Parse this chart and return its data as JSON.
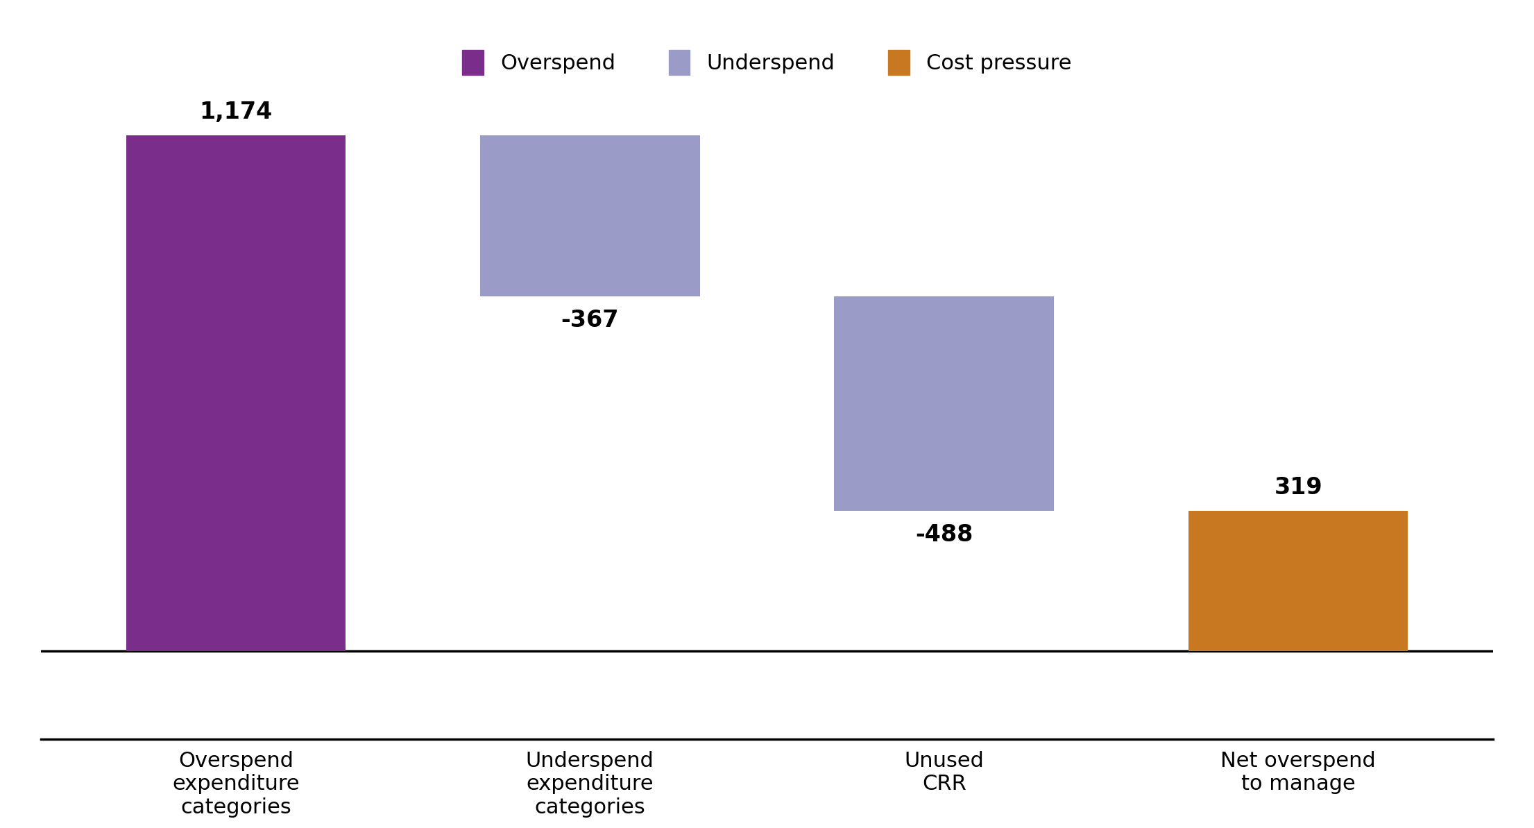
{
  "x_labels": [
    "Overspend\nexpenditure\ncategories",
    "Underspend\nexpenditure\ncategories",
    "Unused\nCRR",
    "Net overspend\nto manage"
  ],
  "values": [
    1174,
    -367,
    -488,
    319
  ],
  "bar_colors": [
    "#7b2d8b",
    "#9b9bc8",
    "#9b9bc8",
    "#c87820"
  ],
  "data_labels": [
    "1,174",
    "-367",
    "-488",
    "319"
  ],
  "legend_items": [
    {
      "label": "Overspend",
      "color": "#7b2d8b"
    },
    {
      "label": "Underspend",
      "color": "#9b9bc8"
    },
    {
      "label": "Cost pressure",
      "color": "#c87820"
    }
  ],
  "background_color": "#ffffff",
  "label_fontsize": 24,
  "tick_fontsize": 22,
  "legend_fontsize": 22,
  "bar_width": 0.62,
  "ylim_min": -200,
  "ylim_max": 1320,
  "figsize": [
    22.11,
    11.93
  ],
  "dpi": 100
}
